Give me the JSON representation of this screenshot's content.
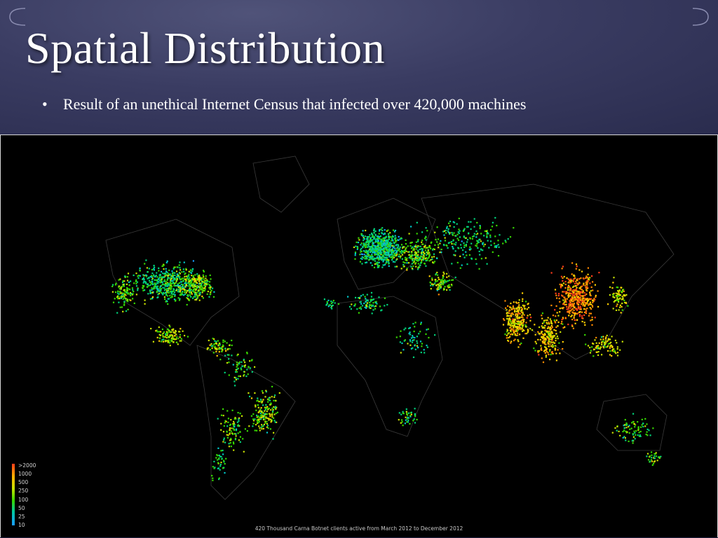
{
  "slide": {
    "title": "Spatial Distribution",
    "bullets": [
      "Result of an  unethical Internet Census that infected over 420,000 machines"
    ],
    "bullet_symbol": "•"
  },
  "map": {
    "type": "world-dot-density-map",
    "background": "#000000",
    "legend": {
      "labels": [
        ">2000",
        "1000",
        "500",
        "250",
        "100",
        "50",
        "25",
        "10"
      ],
      "colors": [
        "#ff3b1a",
        "#ff8a00",
        "#ffd000",
        "#c8e000",
        "#36d600",
        "#00d27a",
        "#00c8c8",
        "#1a9cff"
      ]
    },
    "caption": "420 Thousand Carna Botnet clients active from March 2012 to December 2012"
  },
  "theme": {
    "header_background": "#3a3c62",
    "title_color": "#ffffff",
    "text_color": "#ffffff"
  }
}
